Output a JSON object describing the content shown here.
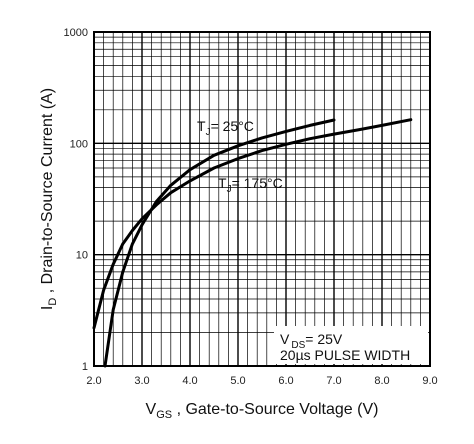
{
  "chart_data": {
    "type": "line",
    "xlabel": {
      "main": "V",
      "sub": "GS",
      "rest": " , Gate-to-Source Voltage (V)"
    },
    "ylabel": {
      "main": "I",
      "sub": "D",
      "rest": " , Drain-to-Source Current (A)"
    },
    "xlim": [
      2.0,
      9.0
    ],
    "ylim": [
      1,
      1000
    ],
    "y_scale": "log",
    "grid": true,
    "x_ticks": [
      "2.0",
      "3.0",
      "4.0",
      "5.0",
      "6.0",
      "7.0",
      "8.0",
      "9.0"
    ],
    "y_ticks": [
      "1",
      "10",
      "100",
      "1000"
    ],
    "series": [
      {
        "name": "TJ = 25°C",
        "label_main": "T",
        "label_sub": "J",
        "label_rest": "= 25°C",
        "x": [
          2.23,
          2.4,
          2.6,
          2.8,
          3.0,
          3.3,
          3.6,
          4.0,
          4.5,
          5.0,
          5.5,
          6.0,
          6.5,
          7.0
        ],
        "y": [
          1.0,
          3.2,
          7.0,
          12.5,
          18.5,
          30.0,
          42.0,
          58.0,
          78.0,
          95.0,
          112.0,
          128.0,
          145.0,
          162.0
        ]
      },
      {
        "name": "TJ = 175°C",
        "label_main": "T",
        "label_sub": "J",
        "label_rest": "= 175°C",
        "x": [
          2.0,
          2.2,
          2.4,
          2.6,
          2.8,
          3.0,
          3.3,
          3.6,
          4.0,
          4.5,
          5.0,
          5.5,
          6.0,
          6.5,
          7.0,
          7.5,
          8.0,
          8.6
        ],
        "y": [
          2.2,
          4.8,
          8.2,
          12.5,
          16.5,
          21.0,
          28.0,
          36.0,
          46.0,
          60.0,
          73.0,
          86.0,
          98.0,
          110.0,
          121.0,
          132.0,
          145.0,
          163.0
        ]
      }
    ],
    "annotation": {
      "line1_main": "V",
      "line1_sub": "DS",
      "line1_rest": "= 25V",
      "line2": "20µs PULSE WIDTH"
    }
  }
}
